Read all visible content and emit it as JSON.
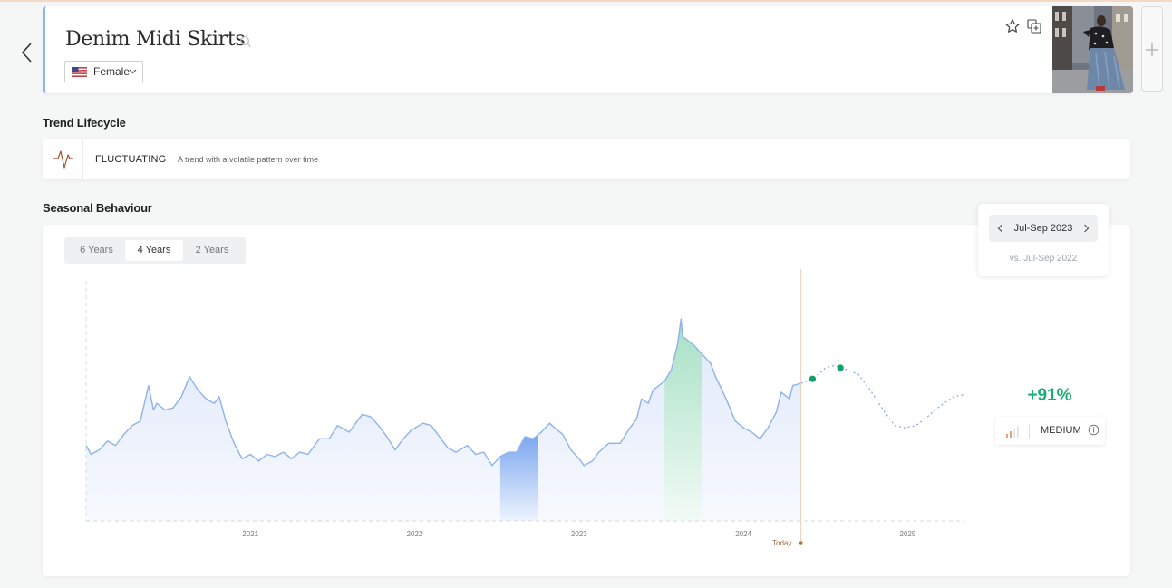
{
  "header": {
    "title": "Denim Midi Skirts",
    "gender": "Female",
    "country_flag": "us-flag-icon"
  },
  "lifecycle": {
    "section_title": "Trend Lifecycle",
    "status": "FLUCTUATING",
    "description": "A trend with a volatile pattern over time"
  },
  "seasonal": {
    "section_title": "Seasonal Behaviour",
    "tabs": [
      "6 Years",
      "4 Years",
      "2 Years"
    ],
    "active_tab": "4 Years",
    "period": {
      "label": "Jul-Sep 2023",
      "comparison": "vs. Jul-Sep 2022"
    },
    "growth": "+91%",
    "level": "MEDIUM"
  },
  "colors": {
    "accent": "#8fb3ea",
    "highlight_current": "#a6e0c4",
    "highlight_previous": "#7aa6ef",
    "growth": "#1aae72",
    "forecast_point": "#14a06a",
    "today_line": "#e8cdb7"
  },
  "chart_data": {
    "type": "area",
    "x_tick_labels": [
      "2021",
      "2022",
      "2023",
      "2024",
      "2025"
    ],
    "today_label": "Today",
    "today": 2024.35,
    "y_range": [
      0,
      100
    ],
    "grid": false,
    "history": [
      [
        2020.0,
        34
      ],
      [
        2020.03,
        30
      ],
      [
        2020.08,
        32
      ],
      [
        2020.13,
        36
      ],
      [
        2020.18,
        34
      ],
      [
        2020.23,
        39
      ],
      [
        2020.28,
        43
      ],
      [
        2020.33,
        45
      ],
      [
        2020.38,
        61
      ],
      [
        2020.41,
        50
      ],
      [
        2020.43,
        53
      ],
      [
        2020.48,
        50
      ],
      [
        2020.53,
        51
      ],
      [
        2020.58,
        56
      ],
      [
        2020.63,
        65
      ],
      [
        2020.68,
        59
      ],
      [
        2020.73,
        55
      ],
      [
        2020.78,
        53
      ],
      [
        2020.81,
        56
      ],
      [
        2020.85,
        45
      ],
      [
        2020.9,
        35
      ],
      [
        2020.95,
        28
      ],
      [
        2021.0,
        30
      ],
      [
        2021.05,
        27
      ],
      [
        2021.1,
        30
      ],
      [
        2021.15,
        29
      ],
      [
        2021.2,
        31
      ],
      [
        2021.25,
        28
      ],
      [
        2021.3,
        31
      ],
      [
        2021.35,
        30
      ],
      [
        2021.42,
        37
      ],
      [
        2021.48,
        37
      ],
      [
        2021.53,
        43
      ],
      [
        2021.6,
        40
      ],
      [
        2021.68,
        48
      ],
      [
        2021.73,
        47
      ],
      [
        2021.78,
        43
      ],
      [
        2021.83,
        38
      ],
      [
        2021.88,
        32
      ],
      [
        2021.93,
        37
      ],
      [
        2021.98,
        41
      ],
      [
        2022.05,
        44
      ],
      [
        2022.1,
        43
      ],
      [
        2022.15,
        38
      ],
      [
        2022.2,
        33
      ],
      [
        2022.25,
        31
      ],
      [
        2022.32,
        34
      ],
      [
        2022.37,
        30
      ],
      [
        2022.42,
        31
      ],
      [
        2022.47,
        25
      ],
      [
        2022.52,
        29
      ],
      [
        2022.57,
        31
      ],
      [
        2022.62,
        31
      ],
      [
        2022.67,
        38
      ],
      [
        2022.72,
        37
      ],
      [
        2022.77,
        40
      ],
      [
        2022.82,
        44
      ],
      [
        2022.85,
        42
      ],
      [
        2022.9,
        39
      ],
      [
        2022.95,
        32
      ],
      [
        2023.0,
        28
      ],
      [
        2023.03,
        25
      ],
      [
        2023.08,
        27
      ],
      [
        2023.12,
        31
      ],
      [
        2023.18,
        35
      ],
      [
        2023.25,
        35
      ],
      [
        2023.3,
        41
      ],
      [
        2023.35,
        46
      ],
      [
        2023.38,
        55
      ],
      [
        2023.42,
        53
      ],
      [
        2023.45,
        59
      ],
      [
        2023.52,
        63
      ],
      [
        2023.56,
        68
      ],
      [
        2023.6,
        80
      ],
      [
        2023.62,
        91
      ],
      [
        2023.63,
        83
      ],
      [
        2023.65,
        82
      ],
      [
        2023.7,
        79
      ],
      [
        2023.75,
        75
      ],
      [
        2023.8,
        71
      ],
      [
        2023.83,
        65
      ],
      [
        2023.85,
        62
      ],
      [
        2023.9,
        54
      ],
      [
        2023.95,
        45
      ],
      [
        2024.0,
        42
      ],
      [
        2024.05,
        40
      ],
      [
        2024.1,
        37
      ],
      [
        2024.15,
        42
      ],
      [
        2024.2,
        49
      ],
      [
        2024.23,
        58
      ],
      [
        2024.28,
        55
      ],
      [
        2024.3,
        61
      ],
      [
        2024.35,
        62
      ]
    ],
    "highlight_previous": [
      2022.52,
      2022.75
    ],
    "highlight_current": [
      2023.52,
      2023.75
    ],
    "forecast": [
      [
        2024.35,
        62
      ],
      [
        2024.42,
        64
      ],
      [
        2024.5,
        69
      ],
      [
        2024.55,
        70
      ],
      [
        2024.6,
        69
      ],
      [
        2024.7,
        66
      ],
      [
        2024.78,
        58
      ],
      [
        2024.85,
        50
      ],
      [
        2024.92,
        43
      ],
      [
        2024.98,
        42
      ],
      [
        2025.05,
        43
      ],
      [
        2025.12,
        47
      ],
      [
        2025.2,
        52
      ],
      [
        2025.28,
        56
      ],
      [
        2025.35,
        57
      ]
    ],
    "forecast_points": [
      [
        2024.42,
        64
      ],
      [
        2024.59,
        69
      ]
    ]
  }
}
